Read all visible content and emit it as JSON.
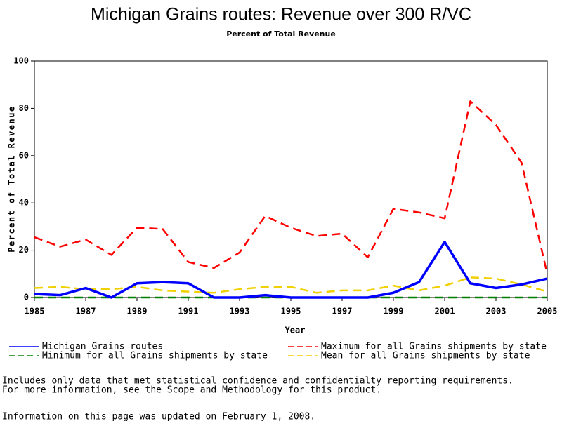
{
  "chart_data": {
    "type": "line",
    "title": "Michigan Grains routes: Revenue over 300 R/VC",
    "subtitle": "Percent of Total Revenue",
    "x_label": "Year",
    "y_label": "Percent of Total Revenue",
    "x": [
      1985,
      1986,
      1987,
      1988,
      1989,
      1990,
      1991,
      1992,
      1993,
      1994,
      1995,
      1996,
      1997,
      1998,
      1999,
      2000,
      2001,
      2002,
      2003,
      2004,
      2005
    ],
    "xlim": [
      1985,
      2005
    ],
    "xticks": [
      1985,
      1987,
      1989,
      1991,
      1993,
      1995,
      1997,
      1999,
      2001,
      2003,
      2005
    ],
    "ylim": [
      0,
      100
    ],
    "yticks": [
      0,
      20,
      40,
      60,
      80,
      100
    ],
    "series": [
      {
        "name": "Michigan Grains routes",
        "color": "#0000ff",
        "dash": "none",
        "values": [
          1.5,
          1,
          4,
          0,
          6,
          6.5,
          6,
          0,
          0,
          1,
          0,
          0,
          0,
          0,
          2,
          6.5,
          23.5,
          6,
          4,
          5.5,
          8
        ]
      },
      {
        "name": "Maximum for all Grains shipments by state",
        "color": "#ff0000",
        "dash": "dashed",
        "values": [
          25.5,
          21.5,
          24.5,
          18,
          29.5,
          29,
          15,
          12.5,
          19,
          34.5,
          29.5,
          26,
          27,
          17,
          37.5,
          36,
          33.5,
          83,
          73,
          57,
          10
        ]
      },
      {
        "name": "Minimum for all Grains shipments by state",
        "color": "#008000",
        "dash": "dashed",
        "values": [
          0,
          0,
          0,
          0,
          0,
          0,
          0,
          0,
          0,
          0,
          0,
          0,
          0,
          0,
          0,
          0,
          0,
          0,
          0,
          0,
          0
        ]
      },
      {
        "name": "Mean for all Grains shipments by state",
        "color": "#f0d000",
        "dash": "dashed",
        "values": [
          4,
          4.5,
          3.5,
          3.5,
          4.5,
          3,
          2.5,
          2,
          3.5,
          4.5,
          4.5,
          2,
          3,
          3,
          5,
          3,
          5,
          8.5,
          8,
          5.5,
          2.5
        ]
      }
    ]
  },
  "notes": [
    "Includes only data that met statistical confidence and confidentialty reporting requirements.",
    "For more information, see the Scope and Methodology for this product.",
    "Information on this page was updated on February 1, 2008."
  ]
}
